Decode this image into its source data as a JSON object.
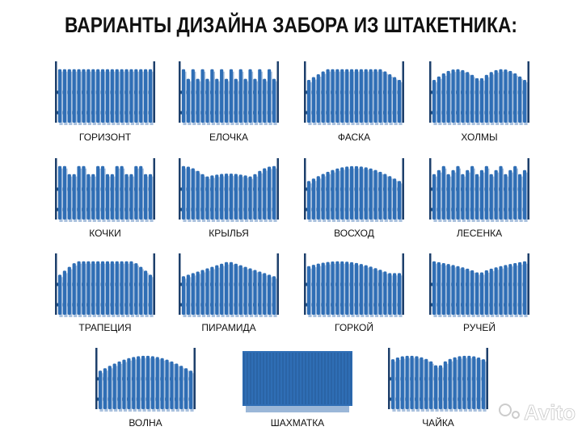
{
  "title": "ВАРИАНТЫ ДИЗАЙНА ЗАБОРА ИЗ ШТАКЕТНИКА:",
  "designs": [
    {
      "label": "ГОРИЗОНТ"
    },
    {
      "label": "ЕЛОЧКА"
    },
    {
      "label": "ФАСКА"
    },
    {
      "label": "ХОЛМЫ"
    },
    {
      "label": "КОЧКИ"
    },
    {
      "label": "КРЫЛЬЯ"
    },
    {
      "label": "ВОСХОД"
    },
    {
      "label": "ЛЕСЕНКА"
    },
    {
      "label": "ТРАПЕЦИЯ"
    },
    {
      "label": "ПИРАМИДА"
    },
    {
      "label": "ГОРКОЙ"
    },
    {
      "label": "РУЧЕЙ"
    },
    {
      "label": "ВОЛНА"
    },
    {
      "label": "ШАХМАТКА"
    },
    {
      "label": "ЧАЙКА"
    }
  ],
  "watermark": "Avito"
}
